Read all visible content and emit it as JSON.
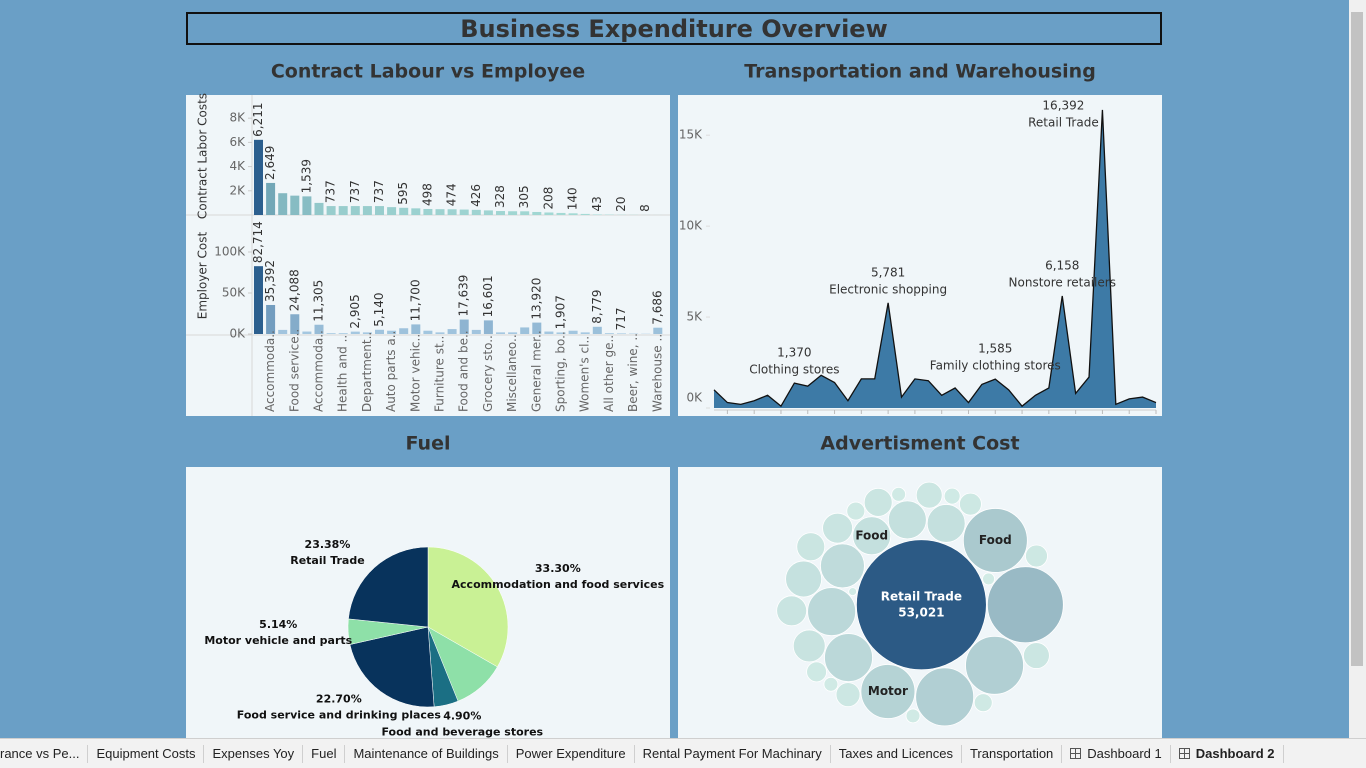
{
  "title": "Business Expenditure Overview",
  "chart_data": [
    {
      "type": "bar",
      "title": "Contract Labour vs Employee",
      "categories": [
        null,
        "Accommoda..",
        null,
        "Food service..",
        null,
        "Accommoda..",
        null,
        "Health and ..",
        null,
        "Department..",
        null,
        "Auto parts a..",
        null,
        "Motor vehic..",
        null,
        "Furniture st..",
        null,
        "Food and be..",
        null,
        "Grocery sto..",
        null,
        "Miscellaneo..",
        null,
        "General mer..",
        null,
        "Sporting, bo..",
        null,
        "Women's cl..",
        null,
        "All other ge..",
        null,
        "Beer, wine, ..",
        null,
        "Warehouse .."
      ],
      "series": [
        {
          "name": "Contract Labor Costs",
          "values": [
            6211,
            2649,
            1800,
            1600,
            1539,
            1000,
            737,
            737,
            737,
            737,
            737,
            650,
            595,
            550,
            498,
            480,
            474,
            450,
            426,
            380,
            328,
            310,
            305,
            250,
            208,
            170,
            140,
            90,
            43,
            30,
            20,
            12,
            8,
            5
          ],
          "value_labels": [
            "6,211",
            "2,649",
            null,
            null,
            "1,539",
            null,
            "737",
            null,
            "737",
            null,
            "737",
            null,
            "595",
            null,
            "498",
            null,
            "474",
            null,
            "426",
            null,
            "328",
            null,
            "305",
            null,
            "208",
            null,
            "140",
            null,
            "43",
            null,
            "20",
            null,
            "8",
            null
          ],
          "ylim": [
            0,
            9750
          ],
          "yticks": [
            {
              "value": 2000,
              "label": "2K"
            },
            {
              "value": 4000,
              "label": "4K"
            },
            {
              "value": 6000,
              "label": "6K"
            },
            {
              "value": 8000,
              "label": "8K"
            }
          ],
          "color_range": [
            "#a6dcd6",
            "#2c5f8e"
          ]
        },
        {
          "name": "Employer Cost",
          "values": [
            82714,
            35392,
            5000,
            24088,
            3000,
            11305,
            1000,
            1000,
            2905,
            2000,
            5140,
            4000,
            7000,
            11700,
            4000,
            2000,
            6000,
            17639,
            5000,
            16601,
            2000,
            2000,
            8000,
            13920,
            3000,
            1907,
            4000,
            2000,
            8779,
            1000,
            717,
            500,
            300,
            7686
          ],
          "value_labels": [
            "82,714",
            "35,392",
            null,
            "24,088",
            null,
            "11,305",
            null,
            null,
            "2,905",
            null,
            "5,140",
            null,
            null,
            "11,700",
            null,
            null,
            null,
            "17,639",
            null,
            "16,601",
            null,
            null,
            null,
            "13,920",
            null,
            "1,907",
            null,
            null,
            "8,779",
            null,
            "717",
            null,
            null,
            "7,686"
          ],
          "ylim": [
            0,
            142700
          ],
          "yticks": [
            {
              "value": 0,
              "label": "0K"
            },
            {
              "value": 50000,
              "label": "50K"
            },
            {
              "value": 100000,
              "label": "100K"
            }
          ],
          "color_range": [
            "#a8cbe3",
            "#2c5f8e"
          ]
        }
      ]
    },
    {
      "type": "area",
      "title": "Transportation and Warehousing",
      "categories": [
        null,
        null,
        null,
        null,
        null,
        null,
        "Clothing stores",
        null,
        null,
        null,
        null,
        null,
        null,
        "Electronic shopping",
        null,
        null,
        null,
        null,
        null,
        null,
        null,
        "Family clothing stores",
        null,
        null,
        null,
        null,
        "Nonstore retailers",
        null,
        null,
        "Retail Trade",
        null,
        null,
        null,
        null
      ],
      "values": [
        1000,
        300,
        200,
        400,
        700,
        100,
        1370,
        1200,
        1800,
        1400,
        400,
        1600,
        1600,
        5781,
        600,
        1600,
        1500,
        700,
        1100,
        300,
        1300,
        1585,
        1000,
        100,
        700,
        1100,
        6158,
        800,
        1700,
        16392,
        200,
        500,
        600,
        300
      ],
      "value_labels": [
        null,
        null,
        null,
        null,
        null,
        null,
        "1,370",
        null,
        null,
        null,
        null,
        null,
        null,
        "5,781",
        null,
        null,
        null,
        null,
        null,
        null,
        null,
        "1,585",
        null,
        null,
        null,
        null,
        "6,158",
        null,
        null,
        "16,392",
        null,
        null,
        null,
        null
      ],
      "ylim": [
        0,
        17100
      ],
      "yticks": [
        {
          "value": 0,
          "label": "0K"
        },
        {
          "value": 5000,
          "label": "5K"
        },
        {
          "value": 10000,
          "label": "10K"
        },
        {
          "value": 15000,
          "label": "15K"
        }
      ],
      "color": "#3d7aa6"
    },
    {
      "type": "pie",
      "title": "Fuel",
      "categories": [
        "Accommodation and food services",
        null,
        "Food and beverage stores",
        "Food service and drinking places",
        "Motor vehicle and parts",
        "Retail Trade"
      ],
      "values": [
        33.3,
        10.58,
        4.9,
        22.7,
        5.14,
        23.38
      ],
      "value_labels": [
        "33.30%",
        null,
        "4.90%",
        "22.70%",
        "5.14%",
        "23.38%"
      ],
      "colors": [
        "#c9f195",
        "#8ee0a8",
        "#1b6f84",
        "#08335c",
        "#8ee0a8",
        "#08335c"
      ]
    },
    {
      "type": "bubble",
      "title": "Advertisment Cost",
      "categories": [
        "Retail Trade",
        null,
        "Food",
        null,
        null,
        "Motor",
        null,
        null,
        null,
        "Food",
        null,
        null,
        null,
        null,
        null,
        null,
        null,
        null,
        null,
        null,
        null,
        null,
        null,
        null,
        null,
        null,
        null,
        null,
        null,
        null,
        null,
        null
      ],
      "values": [
        53021,
        18100,
        12850,
        10550,
        10550,
        9150,
        7230,
        7230,
        6070,
        4530,
        4530,
        4530,
        4070,
        3210,
        2820,
        2820,
        2460,
        2460,
        2120,
        2120,
        1810,
        1520,
        1520,
        1250,
        1020,
        1020,
        800,
        610,
        610,
        610,
        450,
        200
      ],
      "value_labels": [
        "53,021",
        null,
        null,
        null,
        null,
        null,
        null,
        null,
        null,
        null,
        null,
        null,
        null,
        null,
        null,
        null,
        null,
        null,
        null,
        null,
        null,
        null,
        null,
        null,
        null,
        null,
        null,
        null,
        null,
        null,
        null,
        null
      ],
      "color_range": [
        "#d2ece6",
        "#2c5a85"
      ]
    }
  ],
  "tabs": [
    "rance vs Pe...",
    "Equipment Costs",
    "Expenses Yoy",
    "Fuel",
    "Maintenance of Buildings",
    "Power Expenditure",
    "Rental Payment For Machinary",
    "Taxes and Licences",
    "Transportation",
    "Dashboard 1",
    "Dashboard 2"
  ]
}
